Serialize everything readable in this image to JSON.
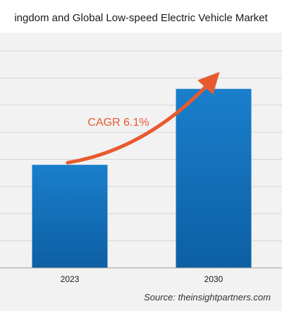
{
  "title": "ingdom and Global Low-speed Electric Vehicle Market",
  "source": "Source: theinsightpartners.com",
  "annotation": "CAGR 6.1%",
  "colors": {
    "bar_top": "#1a7fcc",
    "bar_bottom": "#0d5fa3",
    "arrow": "#e85a2e",
    "grid": "#d6d6d6",
    "background": "#f2f2f2"
  },
  "chart_data": {
    "type": "bar",
    "title": "ingdom and Global Low-speed Electric Vehicle Market",
    "categories": [
      "2023",
      "2030"
    ],
    "values": [
      38,
      66
    ],
    "xlabel": "",
    "ylabel": "",
    "ylim": [
      0,
      80
    ],
    "grid": true,
    "annotations": [
      "CAGR 6.1%"
    ]
  }
}
